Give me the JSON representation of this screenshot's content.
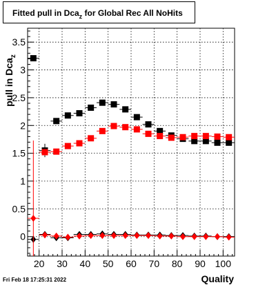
{
  "chart_data": {
    "type": "scatter",
    "title_main": "Fitted pull in Dca",
    "title_sub": "z",
    "title_rest": " for Global Rec All NoHits",
    "xlabel": "Quality",
    "ylabel_main": "pull in Dca",
    "ylabel_sub": "z",
    "xlim": [
      15,
      105
    ],
    "ylim": [
      -0.35,
      3.75
    ],
    "x_ticks": [
      20,
      30,
      40,
      50,
      60,
      70,
      80,
      90,
      100
    ],
    "y_ticks": [
      0,
      0.5,
      1,
      1.5,
      2,
      2.5,
      3,
      3.5
    ],
    "y_tick_labels": [
      "0",
      "0.5",
      "1",
      "1.5",
      "2",
      "2.5",
      "3",
      "3.5"
    ],
    "grid": true,
    "x_error_half_width": 2.5,
    "series": [
      {
        "marker": "square",
        "color": "#000000",
        "x": [
          17.5,
          22.5,
          27.5,
          32.5,
          37.5,
          42.5,
          47.5,
          52.5,
          57.5,
          62.5,
          67.5,
          72.5,
          77.5,
          82.5,
          87.5,
          92.5,
          97.5,
          102.5
        ],
        "y": [
          3.21,
          1.55,
          2.08,
          2.18,
          2.22,
          2.32,
          2.41,
          2.38,
          2.29,
          2.15,
          2.02,
          1.9,
          1.82,
          1.76,
          1.72,
          1.72,
          1.69,
          1.69
        ],
        "yerr": [
          0.04,
          0.12,
          0.05,
          0.03,
          0.03,
          0.02,
          0.02,
          0.02,
          0.02,
          0.02,
          0.02,
          0.02,
          0.02,
          0.02,
          0.02,
          0.02,
          0.02,
          0.02
        ]
      },
      {
        "marker": "square",
        "color": "#ff0000",
        "x": [
          22.5,
          27.5,
          32.5,
          37.5,
          42.5,
          47.5,
          52.5,
          57.5,
          62.5,
          67.5,
          72.5,
          77.5,
          82.5,
          87.5,
          92.5,
          97.5,
          102.5
        ],
        "y": [
          1.52,
          1.53,
          1.63,
          1.68,
          1.77,
          1.9,
          1.99,
          1.97,
          1.93,
          1.85,
          1.81,
          1.78,
          1.79,
          1.81,
          1.81,
          1.8,
          1.79
        ],
        "yerr": [
          0.06,
          0.03,
          0.03,
          0.02,
          0.02,
          0.02,
          0.02,
          0.02,
          0.02,
          0.02,
          0.02,
          0.02,
          0.02,
          0.02,
          0.02,
          0.02,
          0.02
        ]
      },
      {
        "marker": "diamond",
        "color": "#000000",
        "x": [
          17.5,
          22.5,
          27.5,
          32.5,
          37.5,
          42.5,
          47.5,
          52.5,
          57.5,
          62.5,
          67.5,
          72.5,
          77.5,
          82.5,
          87.5,
          92.5,
          97.5,
          102.5
        ],
        "y": [
          -0.05,
          0.04,
          -0.02,
          -0.02,
          0.04,
          0.04,
          0.05,
          0.04,
          0.04,
          0.03,
          0.03,
          0.03,
          0.02,
          0.02,
          0.01,
          0.01,
          0.0,
          0.0
        ],
        "yerr": [
          0.06,
          0.04,
          0.02,
          0.02,
          0.02,
          0.01,
          0.01,
          0.01,
          0.01,
          0.01,
          0.01,
          0.01,
          0.01,
          0.01,
          0.01,
          0.01,
          0.01,
          0.01
        ]
      },
      {
        "marker": "diamond",
        "color": "#ff0000",
        "x": [
          17.5,
          22.5,
          27.5,
          32.5,
          37.5,
          42.5,
          47.5,
          52.5,
          57.5,
          62.5,
          67.5,
          72.5,
          77.5,
          82.5,
          87.5,
          92.5,
          97.5,
          102.5
        ],
        "y": [
          0.33,
          0.03,
          0.01,
          -0.01,
          0.01,
          0.02,
          0.02,
          0.02,
          0.02,
          0.02,
          0.02,
          0.01,
          0.01,
          0.0,
          0.0,
          0.0,
          0.0,
          -0.01
        ],
        "yerr": [
          1.4,
          0.05,
          0.02,
          0.02,
          0.01,
          0.01,
          0.01,
          0.01,
          0.01,
          0.01,
          0.01,
          0.01,
          0.01,
          0.01,
          0.01,
          0.01,
          0.01,
          0.01
        ]
      }
    ]
  },
  "footer": {
    "timestamp": "Fri Feb 18 17:25:31 2022"
  }
}
